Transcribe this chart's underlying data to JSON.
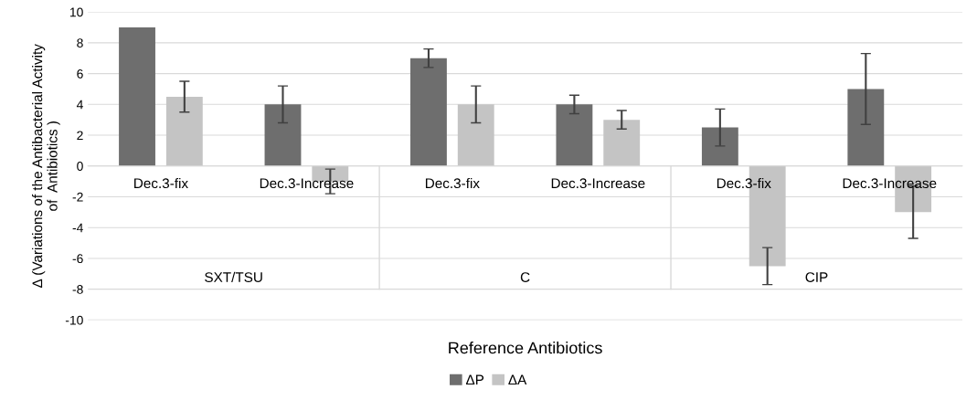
{
  "chart_data": {
    "type": "bar",
    "xlabel": "Reference Antibiotics",
    "ylabel": "Δ (Variations of the Antibacterial Activity\nof  Antibiotics )",
    "categories": [
      "Dec.3-fix",
      "Dec.3-Increase",
      "Dec.3-fix",
      "Dec.3-Increase",
      "Dec.3-fix",
      "Dec.3-Increase"
    ],
    "series": [
      {
        "name": "ΔP",
        "color": "#6e6e6e",
        "values": [
          9,
          4,
          7,
          4,
          2.5,
          5
        ],
        "errors": [
          null,
          1.2,
          0.6,
          0.6,
          1.2,
          2.3
        ]
      },
      {
        "name": "ΔA",
        "color": "#c4c4c4",
        "values": [
          4.5,
          -1,
          4,
          3,
          -6.5,
          -3
        ],
        "errors": [
          1,
          0.8,
          1.2,
          0.6,
          1.2,
          1.7
        ]
      }
    ],
    "annotations": [
      "SXT/TSU",
      "C",
      "CIP"
    ],
    "ylim": [
      -10,
      10
    ],
    "yticks": [
      -10,
      -8,
      -6,
      -4,
      -2,
      0,
      2,
      4,
      6,
      8,
      10
    ],
    "grid": "y",
    "legend": "bottom"
  }
}
